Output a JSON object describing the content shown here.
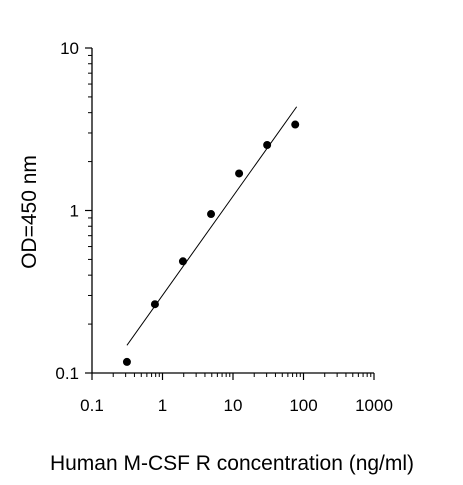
{
  "chart_data": {
    "type": "scatter",
    "title": "",
    "xlabel": "Human M-CSF R concentration (ng/ml)",
    "ylabel": "OD=450 nm",
    "xscale": "log",
    "yscale": "log",
    "xlim": [
      0.1,
      1000
    ],
    "ylim": [
      0.1,
      10
    ],
    "xticks": [
      0.1,
      1,
      10,
      100,
      1000
    ],
    "xtick_labels": [
      "0.1",
      "1",
      "10",
      "100",
      "1000"
    ],
    "yticks": [
      0.1,
      1,
      10
    ],
    "ytick_labels": [
      "0.1",
      "1",
      "10"
    ],
    "grid": false,
    "legend": "none",
    "series": [
      {
        "x": [
          0.313,
          0.781,
          1.95,
          4.88,
          12.2,
          30.5,
          76.3
        ],
        "y": [
          0.117,
          0.265,
          0.487,
          0.951,
          1.69,
          2.53,
          3.38
        ]
      }
    ],
    "fit_line": {
      "x": [
        0.313,
        80
      ],
      "y": [
        0.148,
        4.35
      ]
    },
    "colors": {
      "points": "#000000",
      "line": "#000000",
      "axes": "#000000"
    }
  }
}
